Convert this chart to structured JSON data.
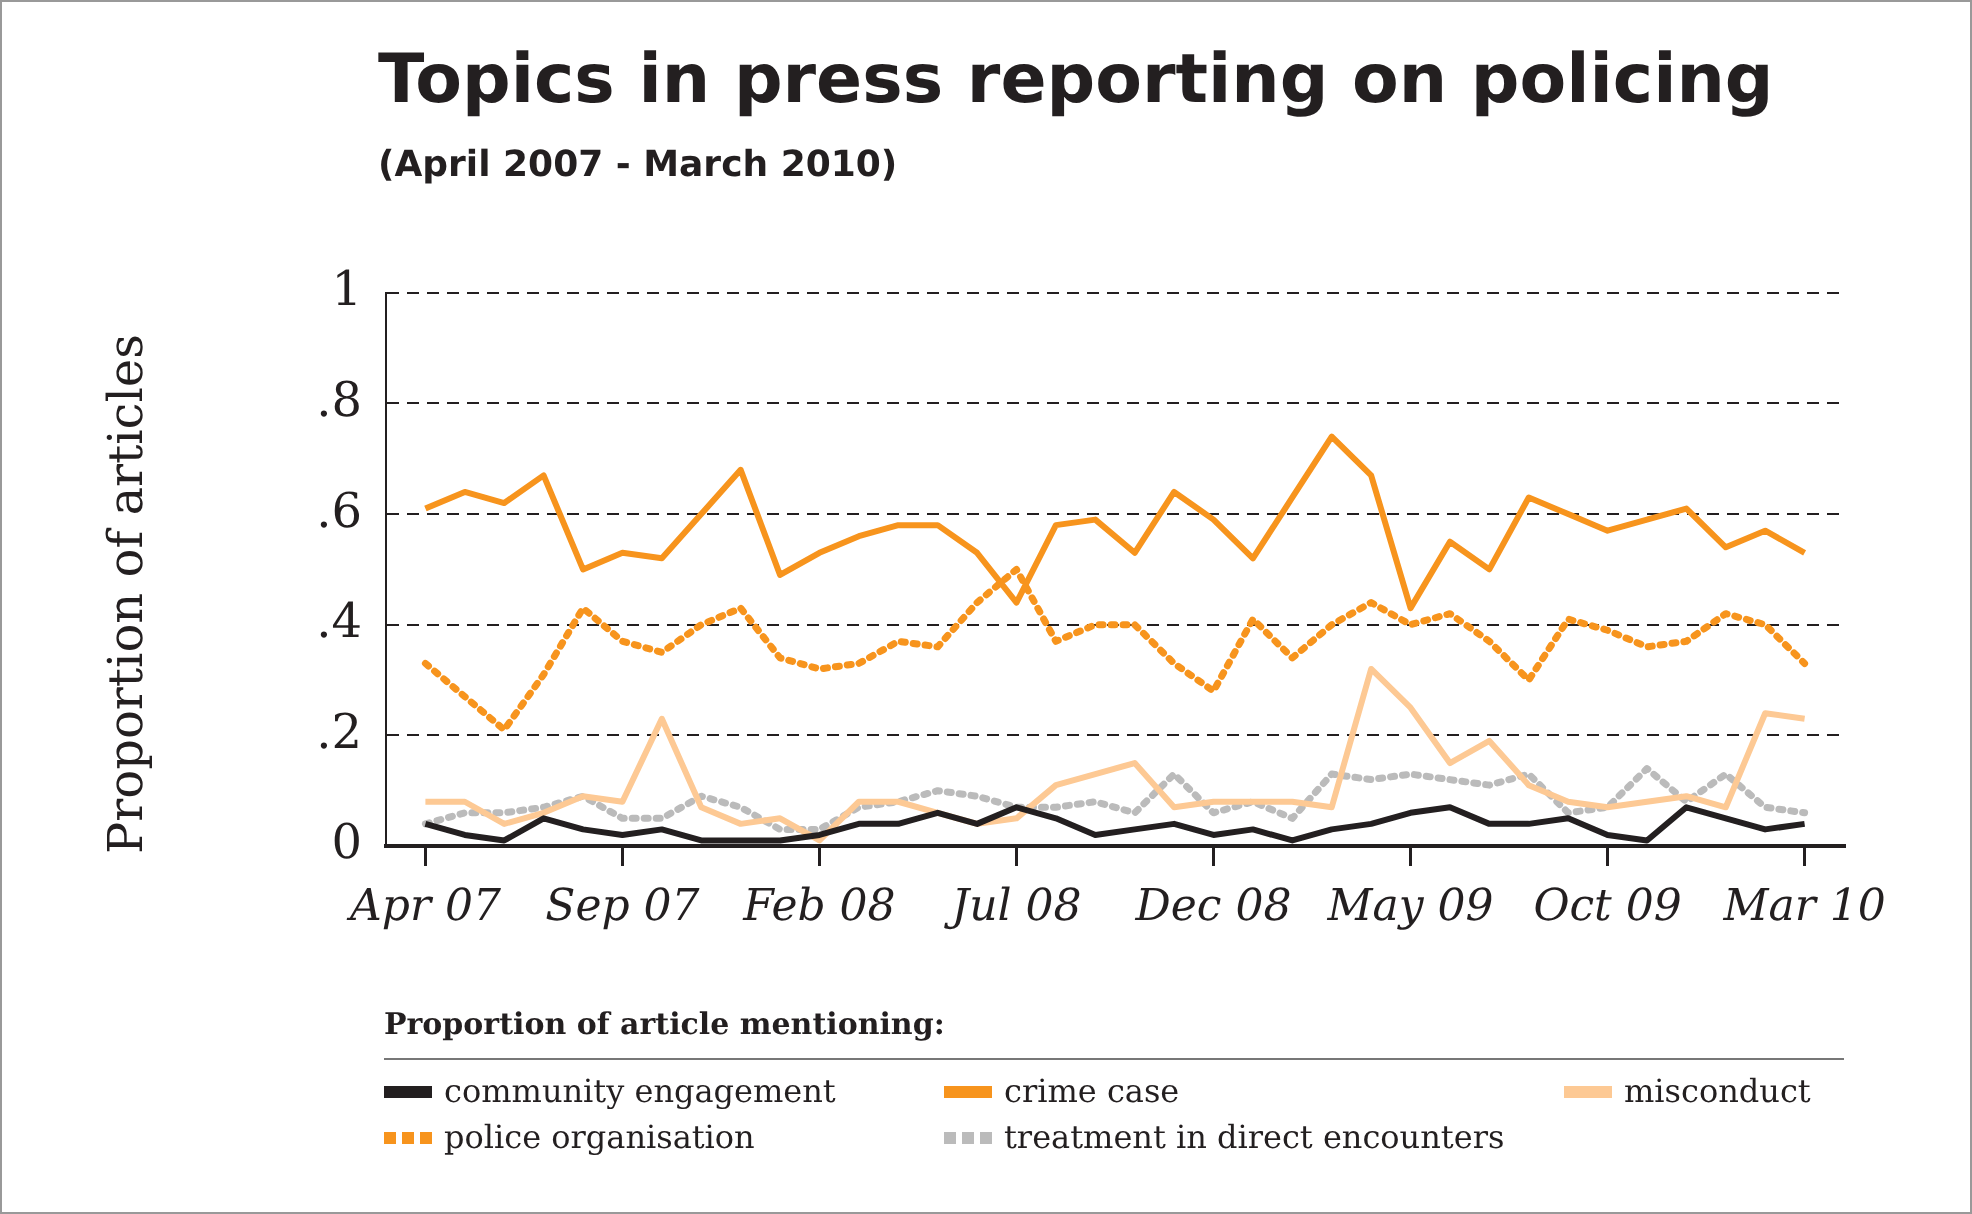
{
  "chart_data": {
    "type": "line",
    "title": "Topics in press reporting on policing",
    "subtitle": "(April 2007 - March 2010)",
    "ylabel": "Proportion of articles",
    "legend_title": "Proportion of article mentioning:",
    "x": [
      "2007-04",
      "2007-05",
      "2007-06",
      "2007-07",
      "2007-08",
      "2007-09",
      "2007-10",
      "2007-11",
      "2007-12",
      "2008-01",
      "2008-02",
      "2008-03",
      "2008-04",
      "2008-05",
      "2008-06",
      "2008-07",
      "2008-08",
      "2008-09",
      "2008-10",
      "2008-11",
      "2008-12",
      "2009-01",
      "2009-02",
      "2009-03",
      "2009-04",
      "2009-05",
      "2009-06",
      "2009-07",
      "2009-08",
      "2009-09",
      "2009-10",
      "2009-11",
      "2009-12",
      "2010-01",
      "2010-02",
      "2010-03"
    ],
    "xlim": [
      "2007-03",
      "2010-04"
    ],
    "xticks": [
      {
        "value": "2007-04",
        "label": "Apr 07"
      },
      {
        "value": "2007-09",
        "label": "Sep 07"
      },
      {
        "value": "2008-02",
        "label": "Feb 08"
      },
      {
        "value": "2008-07",
        "label": "Jul 08"
      },
      {
        "value": "2008-12",
        "label": "Dec 08"
      },
      {
        "value": "2009-05",
        "label": "May 09"
      },
      {
        "value": "2009-10",
        "label": "Oct 09"
      },
      {
        "value": "2010-03",
        "label": "Mar 10"
      }
    ],
    "ylim": [
      0,
      1
    ],
    "yticks": [
      0,
      {
        "value": 0.2,
        "label": ".2"
      },
      {
        "value": 0.4,
        "label": ".4"
      },
      {
        "value": 0.6,
        "label": ".6"
      },
      {
        "value": 0.8,
        "label": ".8"
      },
      1
    ],
    "grid": "y",
    "legend": "bottom",
    "marker": "none",
    "series": [
      {
        "name": "community engagement",
        "color": "#231f20",
        "line_style": "solid",
        "values": [
          0.04,
          0.02,
          0.01,
          0.05,
          0.03,
          0.02,
          0.03,
          0.01,
          0.01,
          0.01,
          0.02,
          0.04,
          0.04,
          0.06,
          0.04,
          0.07,
          0.05,
          0.02,
          0.03,
          0.04,
          0.02,
          0.03,
          0.01,
          0.03,
          0.04,
          0.06,
          0.07,
          0.04,
          0.04,
          0.05,
          0.02,
          0.01,
          0.07,
          0.05,
          0.03,
          0.04
        ]
      },
      {
        "name": "crime case",
        "color": "#f7941d",
        "line_style": "solid",
        "values": [
          0.61,
          0.64,
          0.62,
          0.67,
          0.5,
          0.53,
          0.52,
          0.6,
          0.68,
          0.49,
          0.53,
          0.56,
          0.58,
          0.58,
          0.53,
          0.44,
          0.58,
          0.59,
          0.53,
          0.64,
          0.59,
          0.52,
          0.63,
          0.74,
          0.67,
          0.43,
          0.55,
          0.5,
          0.63,
          0.6,
          0.57,
          0.59,
          0.61,
          0.54,
          0.57,
          0.53
        ]
      },
      {
        "name": "misconduct",
        "color": "#fdc994",
        "line_style": "solid",
        "values": [
          0.08,
          0.08,
          0.04,
          0.06,
          0.09,
          0.08,
          0.23,
          0.07,
          0.04,
          0.05,
          0.01,
          0.08,
          0.08,
          0.06,
          0.04,
          0.05,
          0.11,
          0.13,
          0.15,
          0.07,
          0.08,
          0.08,
          0.08,
          0.07,
          0.32,
          0.25,
          0.15,
          0.19,
          0.11,
          0.08,
          0.07,
          0.08,
          0.09,
          0.07,
          0.24,
          0.23
        ]
      },
      {
        "name": "police organisation",
        "color": "#f7941d",
        "line_style": "dotted",
        "values": [
          0.33,
          0.27,
          0.21,
          0.31,
          0.43,
          0.37,
          0.35,
          0.4,
          0.43,
          0.34,
          0.32,
          0.33,
          0.37,
          0.36,
          0.44,
          0.5,
          0.37,
          0.4,
          0.4,
          0.33,
          0.28,
          0.41,
          0.34,
          0.4,
          0.44,
          0.4,
          0.42,
          0.37,
          0.3,
          0.41,
          0.39,
          0.36,
          0.37,
          0.42,
          0.4,
          0.33
        ]
      },
      {
        "name": "treatment in direct encounters",
        "color": "#bbbbbb",
        "line_style": "dotted",
        "values": [
          0.04,
          0.06,
          0.06,
          0.07,
          0.09,
          0.05,
          0.05,
          0.09,
          0.07,
          0.03,
          0.03,
          0.07,
          0.08,
          0.1,
          0.09,
          0.07,
          0.07,
          0.08,
          0.06,
          0.13,
          0.06,
          0.08,
          0.05,
          0.13,
          0.12,
          0.13,
          0.12,
          0.11,
          0.13,
          0.06,
          0.07,
          0.14,
          0.08,
          0.13,
          0.07,
          0.06
        ]
      }
    ]
  }
}
